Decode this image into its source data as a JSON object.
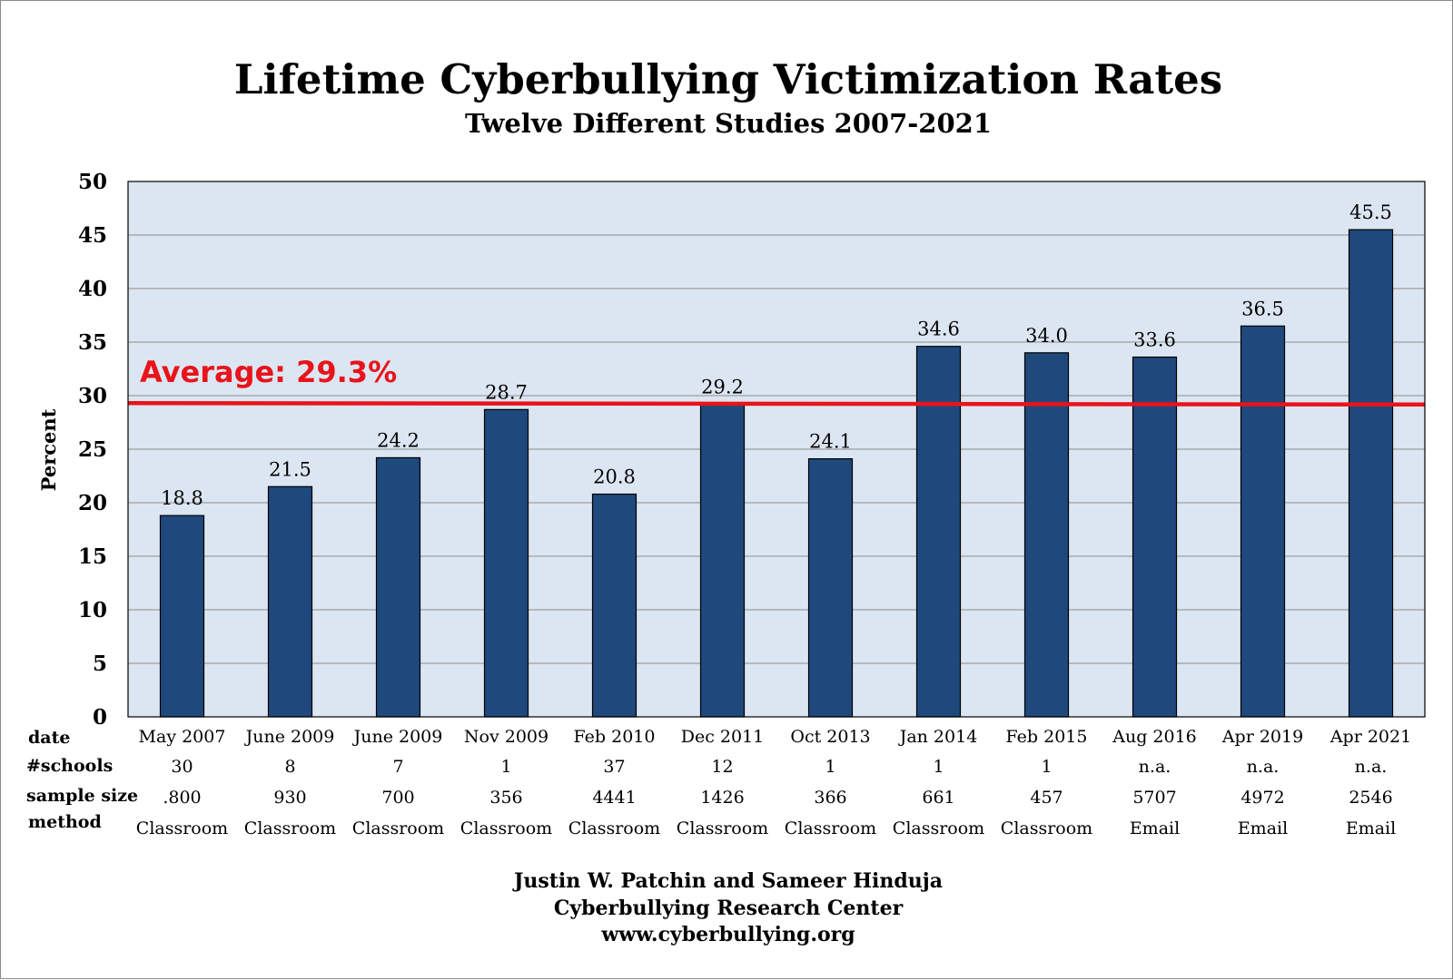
{
  "chart_data": {
    "type": "bar",
    "title": "Lifetime Cyberbullying Victimization Rates",
    "subtitle": "Twelve Different Studies 2007-2021",
    "ylabel": "Percent",
    "ylim": [
      0,
      50
    ],
    "yticks": [
      "0",
      "5",
      "10",
      "15",
      "20",
      "25",
      "30",
      "35",
      "40",
      "45",
      "50"
    ],
    "grid": true,
    "categories": [
      "May 2007",
      "June 2009",
      "June 2009",
      "Nov 2009",
      "Feb 2010",
      "Dec 2011",
      "Oct 2013",
      "Jan 2014",
      "Feb 2015",
      "Aug 2016",
      "Apr 2019",
      "Apr 2021"
    ],
    "values": [
      18.8,
      21.5,
      24.2,
      28.7,
      20.8,
      29.2,
      24.1,
      34.6,
      34.0,
      33.6,
      36.5,
      45.5
    ],
    "value_labels": [
      "18.8",
      "21.5",
      "24.2",
      "28.7",
      "20.8",
      "29.2",
      "24.1",
      "34.6",
      "34.0",
      "33.6",
      "36.5",
      "45.5"
    ],
    "average": {
      "value": 29.3,
      "label": "Average: 29.3%"
    },
    "table": {
      "row_labels": [
        "date",
        "#schools",
        "sample size",
        "method"
      ],
      "schools": [
        "30",
        "8",
        "7",
        "1",
        "37",
        "12",
        "1",
        "1",
        "1",
        "n.a.",
        "n.a.",
        "n.a."
      ],
      "sample_size": [
        ".800",
        "930",
        "700",
        "356",
        "4441",
        "1426",
        "366",
        "661",
        "457",
        "5707",
        "4972",
        "2546"
      ],
      "method": [
        "Classroom",
        "Classroom",
        "Classroom",
        "Classroom",
        "Classroom",
        "Classroom",
        "Classroom",
        "Classroom",
        "Classroom",
        "Email",
        "Email",
        "Email"
      ]
    }
  },
  "colors": {
    "bar": "#1f497d",
    "plot_background": "#dce6f2",
    "average_line": "#e8141b",
    "gridline": "#8c8c8c"
  },
  "credits": {
    "line1": "Justin W. Patchin and Sameer Hinduja",
    "line2": "Cyberbullying Research Center",
    "line3": "www.cyberbullying.org"
  }
}
